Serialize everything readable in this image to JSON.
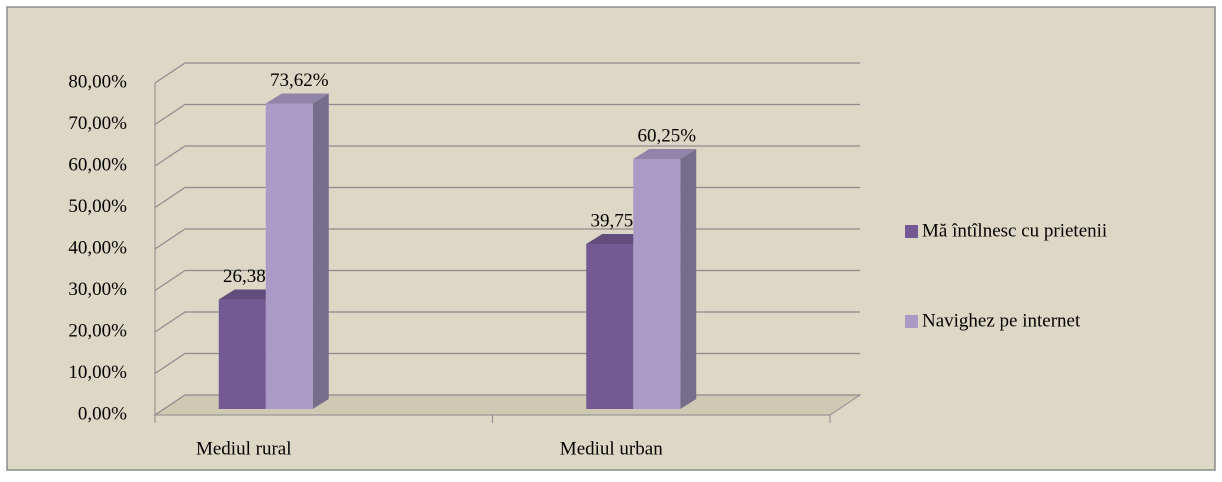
{
  "chart_data": {
    "type": "bar3d",
    "categories": [
      "Mediul rural",
      "Mediul urban"
    ],
    "series": [
      {
        "name": "Mă întîlnesc cu prietenii",
        "color": "#735a93",
        "values": [
          26.38,
          39.75
        ],
        "value_labels": [
          "26,38%",
          "39,75%"
        ]
      },
      {
        "name": "Navighez pe internet",
        "color": "#a99bc6",
        "values": [
          73.62,
          60.25
        ],
        "value_labels": [
          "73,62%",
          "60,25%"
        ]
      }
    ],
    "ylim": [
      0,
      80
    ],
    "yticks": [
      {
        "value": 0,
        "label": "0,00%"
      },
      {
        "value": 10,
        "label": "10,00%"
      },
      {
        "value": 20,
        "label": "20,00%"
      },
      {
        "value": 30,
        "label": "30,00%"
      },
      {
        "value": 40,
        "label": "40,00%"
      },
      {
        "value": 50,
        "label": "50,00%"
      },
      {
        "value": 60,
        "label": "60,00%"
      },
      {
        "value": 70,
        "label": "70,00%"
      },
      {
        "value": 80,
        "label": "80,00%"
      }
    ],
    "grid": true,
    "legend": "right"
  }
}
